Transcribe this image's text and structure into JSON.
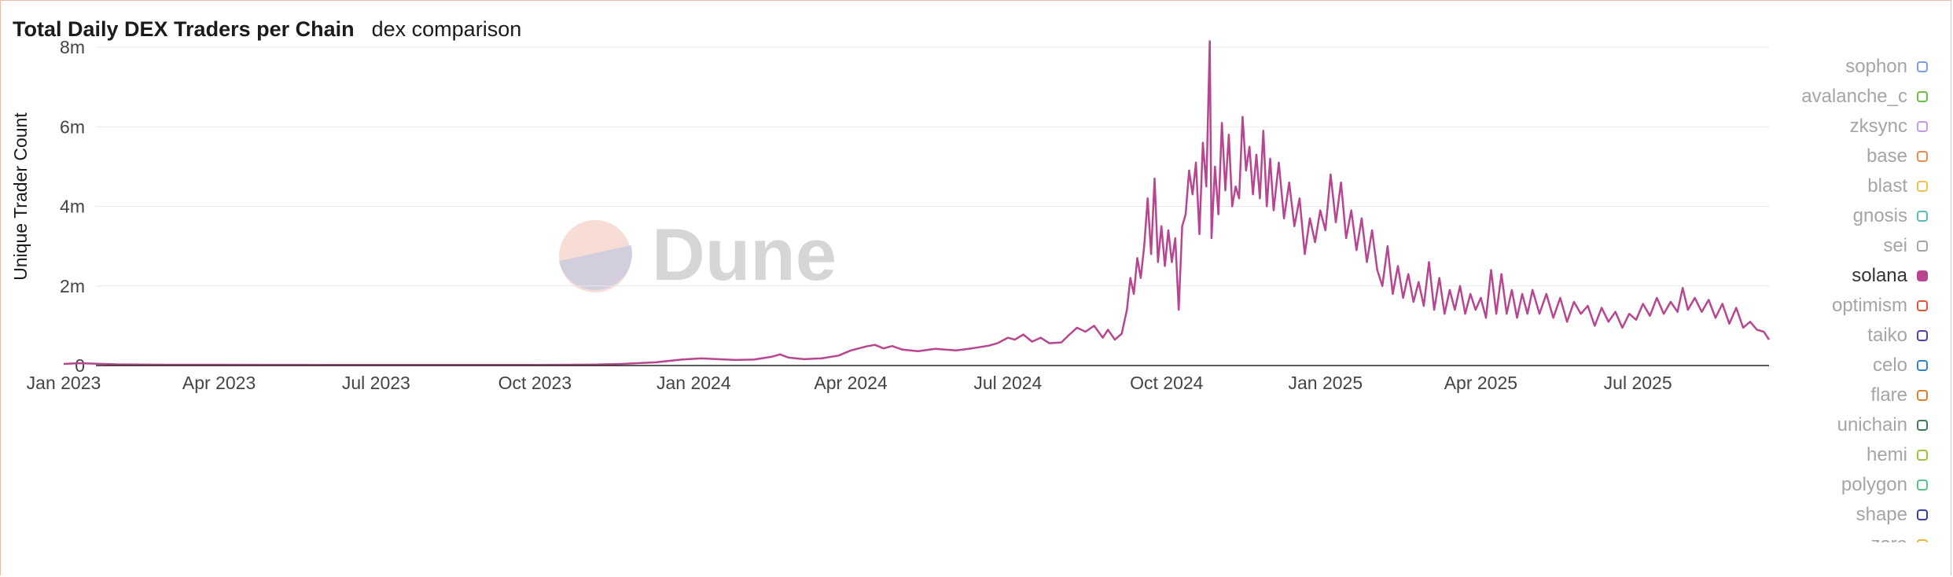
{
  "header": {
    "title": "Total Daily DEX Traders per Chain",
    "subtitle": "dex comparison"
  },
  "watermark": {
    "text": "Dune"
  },
  "chart_data": {
    "type": "line",
    "title": "Total Daily DEX Traders per Chain",
    "xlabel": "",
    "ylabel": "Unique Trader Count",
    "x_range": [
      "2023-01-01",
      "2025-09-15"
    ],
    "ylim": [
      0,
      8000000
    ],
    "yticks": [
      {
        "value": 0,
        "label": "0"
      },
      {
        "value": 2000000,
        "label": "2m"
      },
      {
        "value": 4000000,
        "label": "4m"
      },
      {
        "value": 6000000,
        "label": "6m"
      },
      {
        "value": 8000000,
        "label": "8m"
      }
    ],
    "xticks": [
      {
        "date": "2023-01-01",
        "label": "Jan 2023"
      },
      {
        "date": "2023-04-01",
        "label": "Apr 2023"
      },
      {
        "date": "2023-07-01",
        "label": "Jul 2023"
      },
      {
        "date": "2023-10-01",
        "label": "Oct 2023"
      },
      {
        "date": "2024-01-01",
        "label": "Jan 2024"
      },
      {
        "date": "2024-04-01",
        "label": "Apr 2024"
      },
      {
        "date": "2024-07-01",
        "label": "Jul 2024"
      },
      {
        "date": "2024-10-01",
        "label": "Oct 2024"
      },
      {
        "date": "2025-01-01",
        "label": "Jan 2025"
      },
      {
        "date": "2025-04-01",
        "label": "Apr 2025"
      },
      {
        "date": "2025-07-01",
        "label": "Jul 2025"
      }
    ],
    "grid": true,
    "legend_position": "right",
    "series": [
      {
        "name": "solana",
        "color": "#b8458f",
        "points": [
          [
            "2023-01-01",
            40000
          ],
          [
            "2023-01-10",
            60000
          ],
          [
            "2023-02-01",
            30000
          ],
          [
            "2023-03-01",
            20000
          ],
          [
            "2023-04-01",
            20000
          ],
          [
            "2023-05-01",
            18000
          ],
          [
            "2023-06-01",
            15000
          ],
          [
            "2023-07-01",
            15000
          ],
          [
            "2023-08-01",
            14000
          ],
          [
            "2023-09-01",
            14000
          ],
          [
            "2023-10-01",
            15000
          ],
          [
            "2023-11-01",
            22000
          ],
          [
            "2023-11-20",
            40000
          ],
          [
            "2023-12-10",
            80000
          ],
          [
            "2023-12-25",
            150000
          ],
          [
            "2024-01-05",
            180000
          ],
          [
            "2024-01-15",
            160000
          ],
          [
            "2024-01-25",
            140000
          ],
          [
            "2024-02-05",
            150000
          ],
          [
            "2024-02-15",
            220000
          ],
          [
            "2024-02-20",
            280000
          ],
          [
            "2024-02-25",
            200000
          ],
          [
            "2024-03-05",
            160000
          ],
          [
            "2024-03-15",
            180000
          ],
          [
            "2024-03-25",
            250000
          ],
          [
            "2024-04-01",
            380000
          ],
          [
            "2024-04-10",
            480000
          ],
          [
            "2024-04-15",
            520000
          ],
          [
            "2024-04-20",
            430000
          ],
          [
            "2024-04-25",
            490000
          ],
          [
            "2024-05-01",
            400000
          ],
          [
            "2024-05-10",
            360000
          ],
          [
            "2024-05-20",
            420000
          ],
          [
            "2024-06-01",
            380000
          ],
          [
            "2024-06-10",
            430000
          ],
          [
            "2024-06-20",
            500000
          ],
          [
            "2024-06-25",
            560000
          ],
          [
            "2024-07-01",
            700000
          ],
          [
            "2024-07-05",
            650000
          ],
          [
            "2024-07-10",
            780000
          ],
          [
            "2024-07-15",
            600000
          ],
          [
            "2024-07-20",
            700000
          ],
          [
            "2024-07-25",
            560000
          ],
          [
            "2024-08-01",
            580000
          ],
          [
            "2024-08-05",
            750000
          ],
          [
            "2024-08-10",
            950000
          ],
          [
            "2024-08-15",
            850000
          ],
          [
            "2024-08-20",
            1000000
          ],
          [
            "2024-08-25",
            700000
          ],
          [
            "2024-08-28",
            900000
          ],
          [
            "2024-09-01",
            650000
          ],
          [
            "2024-09-05",
            800000
          ],
          [
            "2024-09-08",
            1400000
          ],
          [
            "2024-09-10",
            2200000
          ],
          [
            "2024-09-12",
            1800000
          ],
          [
            "2024-09-14",
            2700000
          ],
          [
            "2024-09-16",
            2200000
          ],
          [
            "2024-09-18",
            3000000
          ],
          [
            "2024-09-20",
            4200000
          ],
          [
            "2024-09-22",
            2800000
          ],
          [
            "2024-09-24",
            4700000
          ],
          [
            "2024-09-26",
            2600000
          ],
          [
            "2024-09-28",
            3500000
          ],
          [
            "2024-09-30",
            2500000
          ],
          [
            "2024-10-02",
            3400000
          ],
          [
            "2024-10-04",
            2600000
          ],
          [
            "2024-10-06",
            3200000
          ],
          [
            "2024-10-08",
            1400000
          ],
          [
            "2024-10-10",
            3500000
          ],
          [
            "2024-10-12",
            3800000
          ],
          [
            "2024-10-14",
            4900000
          ],
          [
            "2024-10-16",
            4300000
          ],
          [
            "2024-10-18",
            5100000
          ],
          [
            "2024-10-20",
            3300000
          ],
          [
            "2024-10-22",
            5600000
          ],
          [
            "2024-10-24",
            4500000
          ],
          [
            "2024-10-26",
            8150000
          ],
          [
            "2024-10-27",
            3200000
          ],
          [
            "2024-10-29",
            5000000
          ],
          [
            "2024-10-31",
            3800000
          ],
          [
            "2024-11-02",
            6100000
          ],
          [
            "2024-11-04",
            4400000
          ],
          [
            "2024-11-06",
            5800000
          ],
          [
            "2024-11-08",
            4000000
          ],
          [
            "2024-11-10",
            4500000
          ],
          [
            "2024-11-12",
            4200000
          ],
          [
            "2024-11-14",
            6250000
          ],
          [
            "2024-11-16",
            4900000
          ],
          [
            "2024-11-18",
            5500000
          ],
          [
            "2024-11-20",
            4300000
          ],
          [
            "2024-11-22",
            5300000
          ],
          [
            "2024-11-24",
            4200000
          ],
          [
            "2024-11-26",
            5900000
          ],
          [
            "2024-11-28",
            4000000
          ],
          [
            "2024-11-30",
            5200000
          ],
          [
            "2024-12-02",
            3900000
          ],
          [
            "2024-12-05",
            5100000
          ],
          [
            "2024-12-08",
            3700000
          ],
          [
            "2024-12-11",
            4600000
          ],
          [
            "2024-12-14",
            3500000
          ],
          [
            "2024-12-17",
            4200000
          ],
          [
            "2024-12-20",
            2800000
          ],
          [
            "2024-12-23",
            3700000
          ],
          [
            "2024-12-26",
            3100000
          ],
          [
            "2024-12-29",
            3900000
          ],
          [
            "2025-01-01",
            3400000
          ],
          [
            "2025-01-04",
            4800000
          ],
          [
            "2025-01-07",
            3600000
          ],
          [
            "2025-01-10",
            4600000
          ],
          [
            "2025-01-13",
            3200000
          ],
          [
            "2025-01-16",
            3900000
          ],
          [
            "2025-01-19",
            2900000
          ],
          [
            "2025-01-22",
            3700000
          ],
          [
            "2025-01-25",
            2600000
          ],
          [
            "2025-01-28",
            3400000
          ],
          [
            "2025-01-31",
            2400000
          ],
          [
            "2025-02-03",
            2000000
          ],
          [
            "2025-02-06",
            3000000
          ],
          [
            "2025-02-09",
            1800000
          ],
          [
            "2025-02-12",
            2500000
          ],
          [
            "2025-02-15",
            1700000
          ],
          [
            "2025-02-18",
            2300000
          ],
          [
            "2025-02-21",
            1600000
          ],
          [
            "2025-02-24",
            2100000
          ],
          [
            "2025-02-27",
            1500000
          ],
          [
            "2025-03-02",
            2600000
          ],
          [
            "2025-03-05",
            1400000
          ],
          [
            "2025-03-08",
            2200000
          ],
          [
            "2025-03-11",
            1300000
          ],
          [
            "2025-03-14",
            1900000
          ],
          [
            "2025-03-17",
            1400000
          ],
          [
            "2025-03-20",
            2000000
          ],
          [
            "2025-03-23",
            1300000
          ],
          [
            "2025-03-26",
            1800000
          ],
          [
            "2025-03-29",
            1400000
          ],
          [
            "2025-04-01",
            1700000
          ],
          [
            "2025-04-04",
            1200000
          ],
          [
            "2025-04-07",
            2400000
          ],
          [
            "2025-04-10",
            1300000
          ],
          [
            "2025-04-13",
            2300000
          ],
          [
            "2025-04-16",
            1300000
          ],
          [
            "2025-04-19",
            1900000
          ],
          [
            "2025-04-22",
            1200000
          ],
          [
            "2025-04-25",
            1800000
          ],
          [
            "2025-04-28",
            1300000
          ],
          [
            "2025-05-01",
            1900000
          ],
          [
            "2025-05-05",
            1300000
          ],
          [
            "2025-05-09",
            1800000
          ],
          [
            "2025-05-13",
            1200000
          ],
          [
            "2025-05-17",
            1700000
          ],
          [
            "2025-05-21",
            1100000
          ],
          [
            "2025-05-25",
            1600000
          ],
          [
            "2025-05-29",
            1300000
          ],
          [
            "2025-06-02",
            1500000
          ],
          [
            "2025-06-06",
            1000000
          ],
          [
            "2025-06-10",
            1450000
          ],
          [
            "2025-06-14",
            1100000
          ],
          [
            "2025-06-18",
            1350000
          ],
          [
            "2025-06-22",
            950000
          ],
          [
            "2025-06-26",
            1300000
          ],
          [
            "2025-06-30",
            1150000
          ],
          [
            "2025-07-04",
            1550000
          ],
          [
            "2025-07-08",
            1250000
          ],
          [
            "2025-07-12",
            1700000
          ],
          [
            "2025-07-16",
            1300000
          ],
          [
            "2025-07-20",
            1600000
          ],
          [
            "2025-07-24",
            1350000
          ],
          [
            "2025-07-27",
            1950000
          ],
          [
            "2025-07-30",
            1400000
          ],
          [
            "2025-08-03",
            1700000
          ],
          [
            "2025-08-07",
            1350000
          ],
          [
            "2025-08-11",
            1650000
          ],
          [
            "2025-08-15",
            1200000
          ],
          [
            "2025-08-19",
            1550000
          ],
          [
            "2025-08-23",
            1050000
          ],
          [
            "2025-08-27",
            1450000
          ],
          [
            "2025-08-31",
            950000
          ],
          [
            "2025-09-04",
            1100000
          ],
          [
            "2025-09-08",
            900000
          ],
          [
            "2025-09-12",
            850000
          ],
          [
            "2025-09-15",
            650000
          ]
        ]
      }
    ]
  },
  "legend": {
    "items": [
      {
        "label": "sophon",
        "color": "#7c9ce0",
        "active": false
      },
      {
        "label": "avalanche_c",
        "color": "#6bbd45",
        "active": false
      },
      {
        "label": "zksync",
        "color": "#c39be6",
        "active": false
      },
      {
        "label": "base",
        "color": "#e88d4f",
        "active": false
      },
      {
        "label": "blast",
        "color": "#efc24e",
        "active": false
      },
      {
        "label": "gnosis",
        "color": "#56bdb0",
        "active": false
      },
      {
        "label": "sei",
        "color": "#a3a3a3",
        "active": false
      },
      {
        "label": "solana",
        "color": "#b8458f",
        "active": true
      },
      {
        "label": "optimism",
        "color": "#e0523c",
        "active": false
      },
      {
        "label": "taiko",
        "color": "#5b3aa3",
        "active": false
      },
      {
        "label": "celo",
        "color": "#2f86c9",
        "active": false
      },
      {
        "label": "flare",
        "color": "#d9822b",
        "active": false
      },
      {
        "label": "unichain",
        "color": "#3d7a55",
        "active": false
      },
      {
        "label": "hemi",
        "color": "#9dc43e",
        "active": false
      },
      {
        "label": "polygon",
        "color": "#5cc08a",
        "active": false
      },
      {
        "label": "shape",
        "color": "#3a3f9e",
        "active": false
      },
      {
        "label": "zora",
        "color": "#e6b83a",
        "active": false
      }
    ]
  }
}
